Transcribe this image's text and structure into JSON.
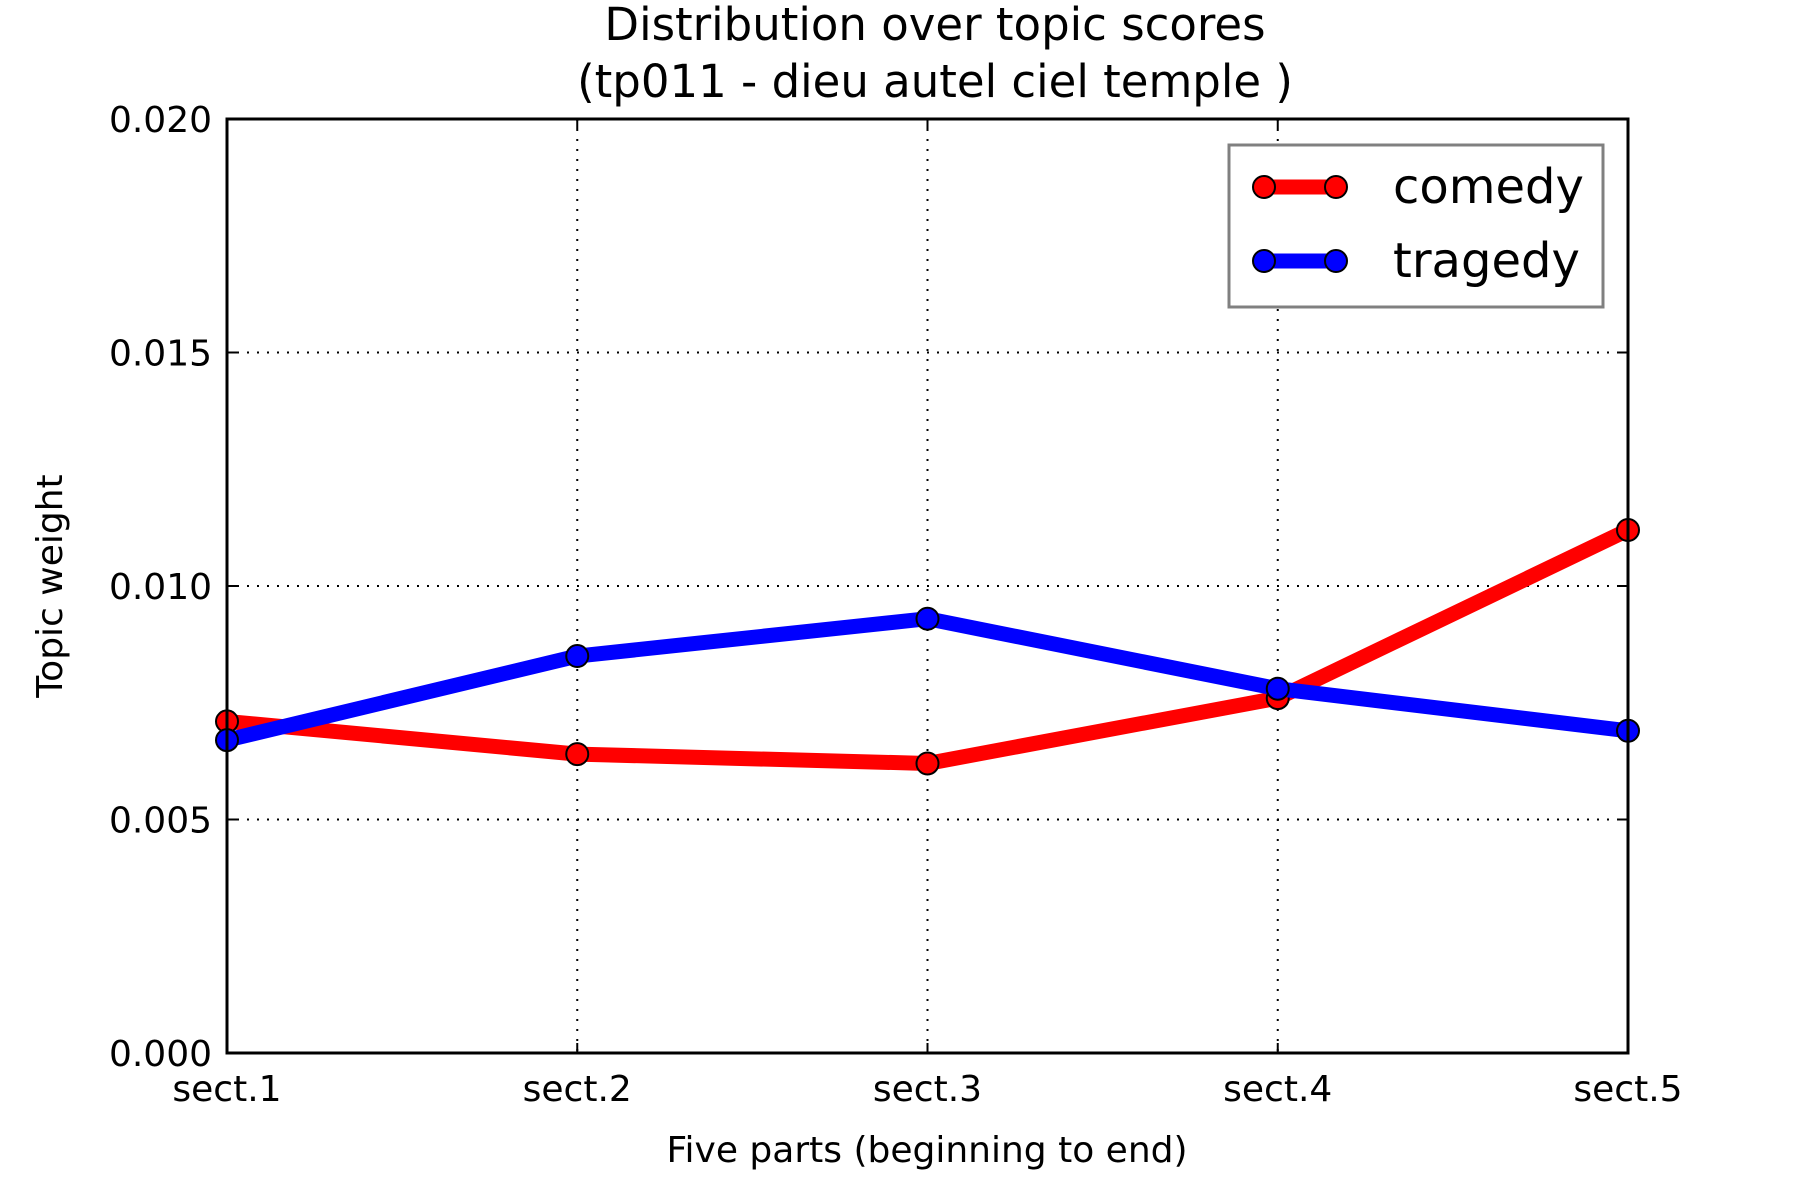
{
  "chart_data": {
    "type": "line",
    "title": "Distribution over topic scores",
    "subtitle": "(tp011 - dieu autel ciel temple )",
    "xlabel": "Five parts (beginning to end)",
    "ylabel": "Topic weight",
    "categories": [
      "sect.1",
      "sect.2",
      "sect.3",
      "sect.4",
      "sect.5"
    ],
    "ylim": [
      0,
      0.02
    ],
    "yticks": [
      0.0,
      0.005,
      0.01,
      0.015,
      0.02
    ],
    "ytick_labels": [
      "0.000",
      "0.005",
      "0.010",
      "0.015",
      "0.020"
    ],
    "grid": true,
    "legend_position": "top-right",
    "series": [
      {
        "name": "comedy",
        "color": "#ff0000",
        "values": [
          0.0071,
          0.0064,
          0.0062,
          0.0076,
          0.0112
        ]
      },
      {
        "name": "tragedy",
        "color": "#0000ff",
        "values": [
          0.0067,
          0.0085,
          0.0093,
          0.0078,
          0.0069
        ]
      }
    ]
  }
}
